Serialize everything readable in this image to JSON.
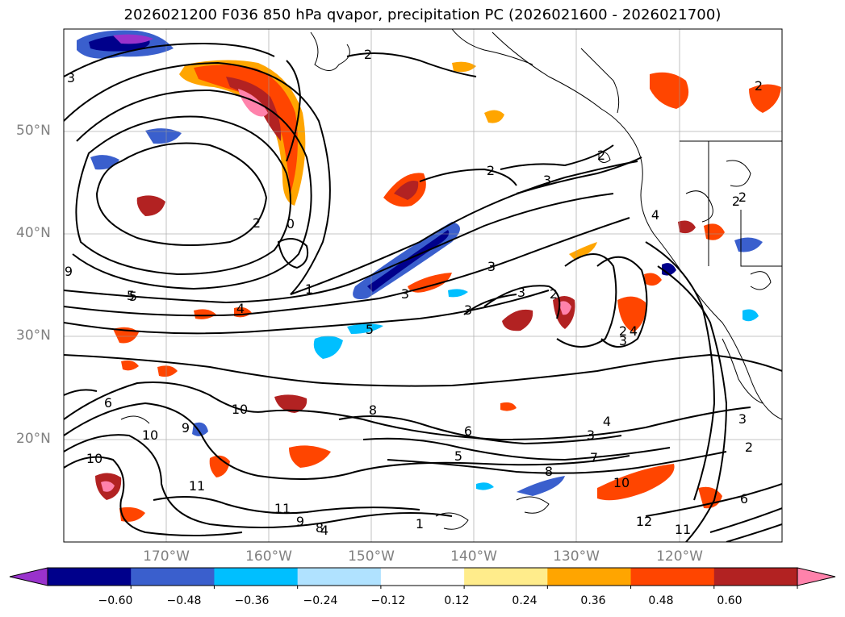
{
  "title": "2026021200 F036 850 hPa qvapor, precipitation PC (2026021600 - 2026021700)",
  "lat_ticks": [
    "50°N",
    "40°N",
    "30°N",
    "20°N"
  ],
  "lon_ticks": [
    "170°W",
    "160°W",
    "150°W",
    "140°W",
    "130°W",
    "120°W"
  ],
  "colorbar": {
    "tick_labels": [
      "−0.60",
      "−0.48",
      "−0.36",
      "−0.24",
      "−0.12",
      "0.12",
      "0.24",
      "0.36",
      "0.48",
      "0.60"
    ],
    "colors": [
      "#9932cc",
      "#00008b",
      "#3a5fcd",
      "#00bfff",
      "#b0e2ff",
      "#ffffff",
      "#ffec8b",
      "#ffa500",
      "#ff4500",
      "#b22222",
      "#ff82ab"
    ],
    "extend": "both"
  },
  "contour_labels": [
    "2",
    "2",
    "3",
    "3",
    "2",
    "2",
    "2",
    "0",
    "1",
    "4",
    "5",
    "5",
    "6",
    "9",
    "10",
    "10",
    "10",
    "11",
    "11",
    "9",
    "9",
    "8",
    "8",
    "6",
    "3",
    "4",
    "3",
    "5",
    "7",
    "8",
    "10",
    "12",
    "11",
    "6",
    "2",
    "3",
    "3",
    "2",
    "4",
    "3",
    "2",
    "3",
    "3",
    "2",
    "5",
    "2",
    "4",
    "4",
    "1"
  ],
  "chart_data": {
    "type": "map",
    "field": "850 hPa qvapor contours with precipitation PC shading",
    "lat_range": [
      "10°N",
      "60°N"
    ],
    "lon_range": [
      "180°W",
      "110°W"
    ],
    "grid": true
  }
}
